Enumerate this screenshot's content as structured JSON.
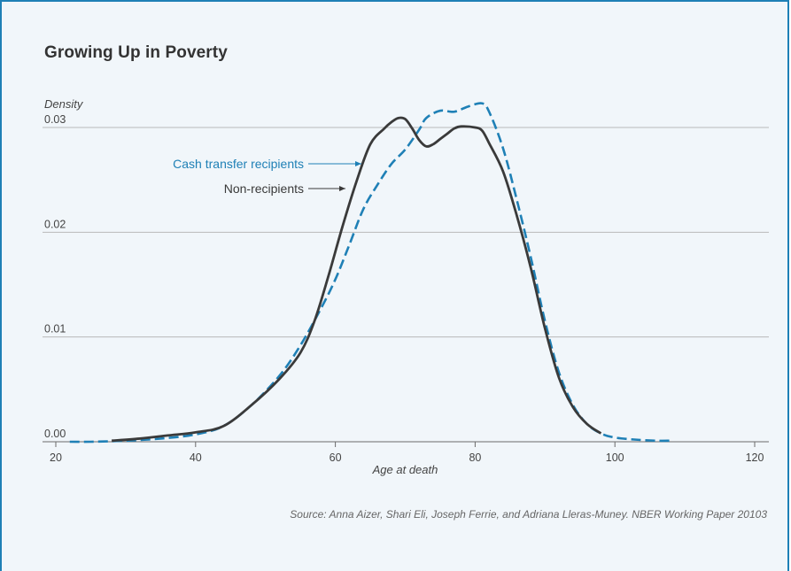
{
  "title": "Growing Up in Poverty",
  "source": "Source: Anna Aizer, Shari Eli, Joseph Ferrie, and Adriana Lleras-Muney. NBER Working Paper 20103",
  "colors": {
    "recipients": "#1f80b6",
    "non_recipients": "#3a3a3a",
    "grid": "#b9b9b9",
    "frame": "#1f80b6"
  },
  "chart_data": {
    "type": "line",
    "xlabel": "Age at death",
    "ylabel": "Density",
    "xlim": [
      20,
      120
    ],
    "ylim": [
      0,
      0.03
    ],
    "xticks": [
      20,
      40,
      60,
      80,
      100,
      120
    ],
    "yticks": [
      "0.00",
      "0.01",
      "0.02",
      "0.03"
    ],
    "grid": "horizontal",
    "series": [
      {
        "name": "Cash transfer recipients",
        "style": "dashed",
        "color": "#1f80b6",
        "x": [
          22,
          25,
          30,
          35,
          40,
          44,
          48,
          52,
          55,
          58,
          60,
          62,
          64,
          66,
          68,
          70,
          72,
          73,
          75,
          77,
          79,
          81,
          82,
          84,
          86,
          88,
          90,
          92,
          94,
          96,
          98,
          100,
          103,
          106,
          108
        ],
        "y": [
          0.0,
          0.0,
          0.0001,
          0.0003,
          0.0007,
          0.0015,
          0.0035,
          0.0063,
          0.0092,
          0.0128,
          0.0155,
          0.0188,
          0.0222,
          0.0245,
          0.0265,
          0.0279,
          0.0298,
          0.0309,
          0.0316,
          0.0315,
          0.032,
          0.0323,
          0.0315,
          0.028,
          0.023,
          0.0175,
          0.0115,
          0.0066,
          0.0035,
          0.0017,
          0.0008,
          0.0004,
          0.0002,
          0.0001,
          0.0001
        ]
      },
      {
        "name": "Non-recipients",
        "style": "solid",
        "color": "#3a3a3a",
        "x": [
          28,
          32,
          36,
          40,
          44,
          48,
          52,
          55,
          57,
          59,
          61,
          63,
          65,
          67,
          68,
          69,
          70,
          71,
          72,
          73,
          74,
          75,
          76,
          77,
          78,
          80,
          81,
          82,
          84,
          86,
          88,
          90,
          92,
          94,
          96,
          98
        ],
        "y": [
          0.0001,
          0.0003,
          0.0006,
          0.0009,
          0.0015,
          0.0035,
          0.006,
          0.0085,
          0.0115,
          0.0158,
          0.0205,
          0.0248,
          0.0284,
          0.0299,
          0.0305,
          0.0309,
          0.0308,
          0.0299,
          0.0288,
          0.0282,
          0.0284,
          0.0289,
          0.0294,
          0.0299,
          0.0301,
          0.03,
          0.0297,
          0.0285,
          0.0258,
          0.0215,
          0.0165,
          0.0108,
          0.0061,
          0.0033,
          0.0017,
          0.0008
        ]
      }
    ]
  }
}
